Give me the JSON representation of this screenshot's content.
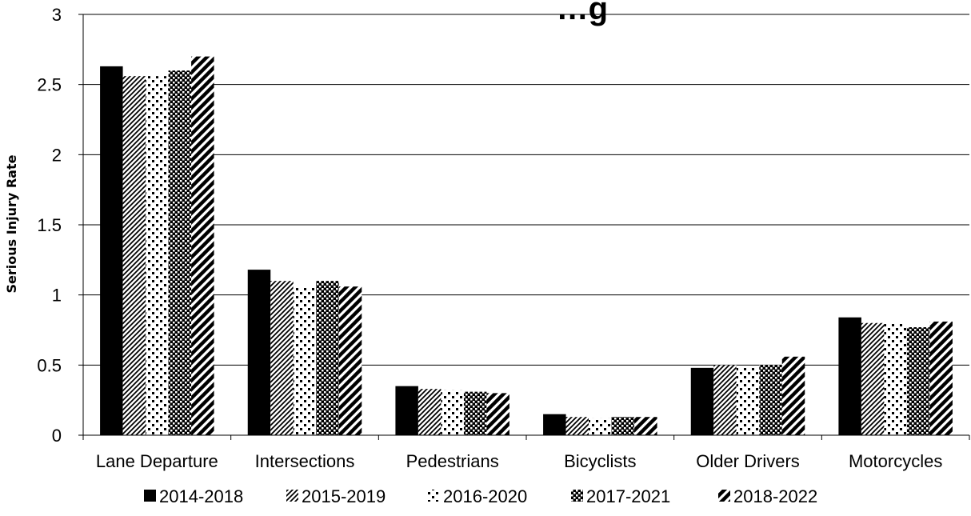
{
  "chart_data": {
    "type": "bar",
    "title": "…g",
    "ylabel": "Serious Injury Rate",
    "xlabel": "",
    "ylim": [
      0,
      3
    ],
    "yticks": [
      "0",
      "0.5",
      "1",
      "1.5",
      "2",
      "2.5",
      "3"
    ],
    "grid": true,
    "legend_position": "bottom",
    "categories": [
      "Lane Departure",
      "Intersections",
      "Pedestrians",
      "Bicyclists",
      "Older Drivers",
      "Motorcycles"
    ],
    "series": [
      {
        "name": "2014-2018",
        "pattern": "solid",
        "values": [
          2.63,
          1.18,
          0.35,
          0.15,
          0.48,
          0.84
        ]
      },
      {
        "name": "2015-2019",
        "pattern": "diagonal-dense",
        "values": [
          2.56,
          1.1,
          0.33,
          0.13,
          0.5,
          0.8
        ]
      },
      {
        "name": "2016-2020",
        "pattern": "checker-sparse",
        "values": [
          2.56,
          1.06,
          0.32,
          0.12,
          0.49,
          0.8
        ]
      },
      {
        "name": "2017-2021",
        "pattern": "checker-dense",
        "values": [
          2.6,
          1.1,
          0.31,
          0.13,
          0.5,
          0.77
        ]
      },
      {
        "name": "2018-2022",
        "pattern": "diagonal-wide",
        "values": [
          2.7,
          1.06,
          0.3,
          0.13,
          0.56,
          0.81
        ]
      }
    ],
    "colors": {
      "bar": "#000000",
      "gridline": "#000000",
      "background": "#ffffff"
    }
  }
}
